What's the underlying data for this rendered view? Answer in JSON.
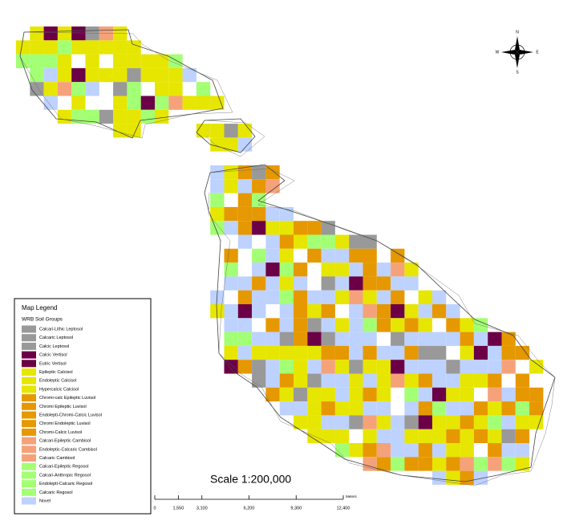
{
  "map": {
    "scale_text": "Scale   1:200,000",
    "scale_bar": {
      "ticks": [
        0,
        {
          "value": 1550,
          "label": "1,550"
        },
        {
          "value": 3100,
          "label": "3,100"
        },
        {
          "value": 6200,
          "label": "6,200"
        },
        {
          "value": 9300,
          "label": "9,300"
        },
        {
          "value": 12400,
          "label": "12,400"
        }
      ],
      "unit": "Meters"
    },
    "compass": [
      "N",
      "E",
      "S",
      "W"
    ],
    "legend": {
      "title": "Map Legend",
      "subtitle": "WRB Soil Groups",
      "items": [
        {
          "name": "Calcari-Lithic Leptosol",
          "color": "#999999"
        },
        {
          "name": "Calcaric Leptosol",
          "color": "#999999"
        },
        {
          "name": "Calcic Leptosol",
          "color": "#999999"
        },
        {
          "name": "Calcic Vertisol",
          "color": "#6b0046"
        },
        {
          "name": "Eutric Vertisol",
          "color": "#6b0046"
        },
        {
          "name": "Epileptic Calcisol",
          "color": "#e6e600"
        },
        {
          "name": "Endoleptic Calcisol",
          "color": "#e6e600"
        },
        {
          "name": "Hypercalcic Calcisol",
          "color": "#e6e600"
        },
        {
          "name": "Chromi-calc Epileptic Luvisol",
          "color": "#e69800"
        },
        {
          "name": "Chromi Epileptic Luvisol",
          "color": "#e69800"
        },
        {
          "name": "Endolepti-Chromi-Calcic Luvisol",
          "color": "#e69800"
        },
        {
          "name": "Chromi Endoleptic Luvisol",
          "color": "#e69800"
        },
        {
          "name": "Chromi-Calcic Luvisol",
          "color": "#e69800"
        },
        {
          "name": "Calcari-Epileptic Cambisol",
          "color": "#f5a27a"
        },
        {
          "name": "Endoleptic-Calcaric Cambisol",
          "color": "#f5a27a"
        },
        {
          "name": "Calcaric Cambisol",
          "color": "#f5a27a"
        },
        {
          "name": "Calcari-Epileptic Regosol",
          "color": "#a3ff73"
        },
        {
          "name": "Calcari-Anthropic Regosol",
          "color": "#a3ff73"
        },
        {
          "name": "Endolepti-Calcaric Regosol",
          "color": "#a3ff73"
        },
        {
          "name": "Calcaric Regosol",
          "color": "#a3ff73"
        },
        {
          "name": "Novel",
          "color": "#bed2ff"
        }
      ]
    }
  }
}
